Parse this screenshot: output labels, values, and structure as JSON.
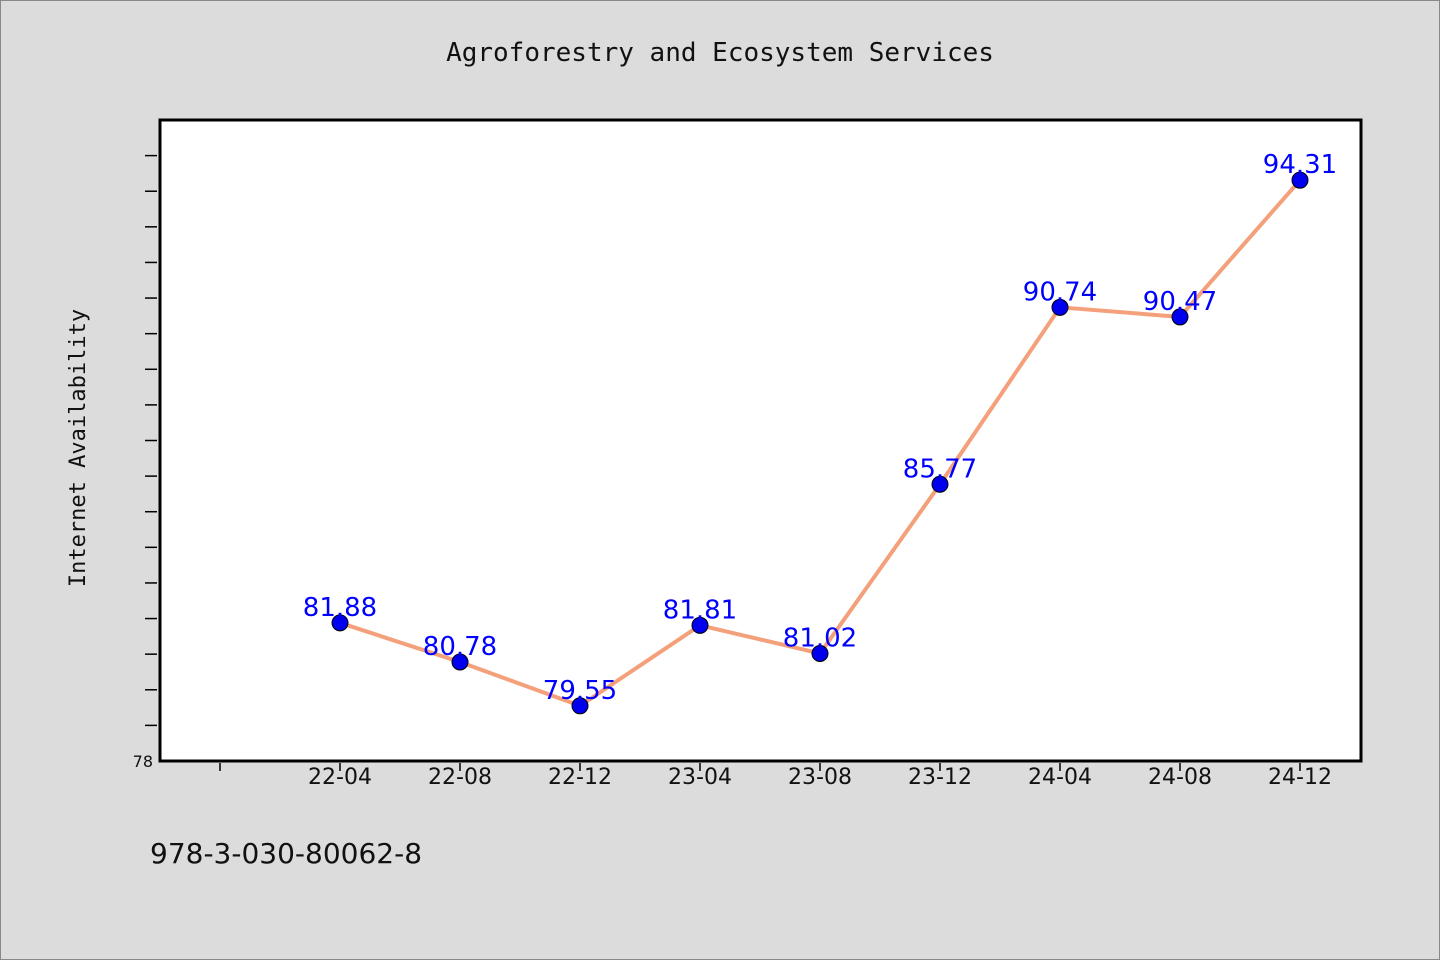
{
  "chart_data": {
    "type": "line",
    "title": "Agroforestry and Ecosystem Services",
    "xlabel": "",
    "ylabel": "Internet Availability",
    "categories": [
      "22-04",
      "22-08",
      "22-12",
      "23-04",
      "23-08",
      "23-12",
      "24-04",
      "24-08",
      "24-12"
    ],
    "values": [
      81.88,
      80.78,
      79.55,
      81.81,
      81.02,
      85.77,
      90.74,
      90.47,
      94.31
    ],
    "data_labels": [
      "81.88",
      "80.78",
      "79.55",
      "81.81",
      "81.02",
      "85.77",
      "90.74",
      "90.47",
      "94.31"
    ],
    "ylim": [
      78,
      96
    ],
    "y_tick_labels": [
      "78"
    ],
    "grid": false,
    "colors": {
      "line": "#f4a07a",
      "marker": "#0000ee",
      "label": "#0000ff",
      "plot_bg": "#ffffff",
      "page_bg": "#dcdcdc"
    }
  },
  "footer": {
    "isbn": "978-3-030-80062-8"
  }
}
